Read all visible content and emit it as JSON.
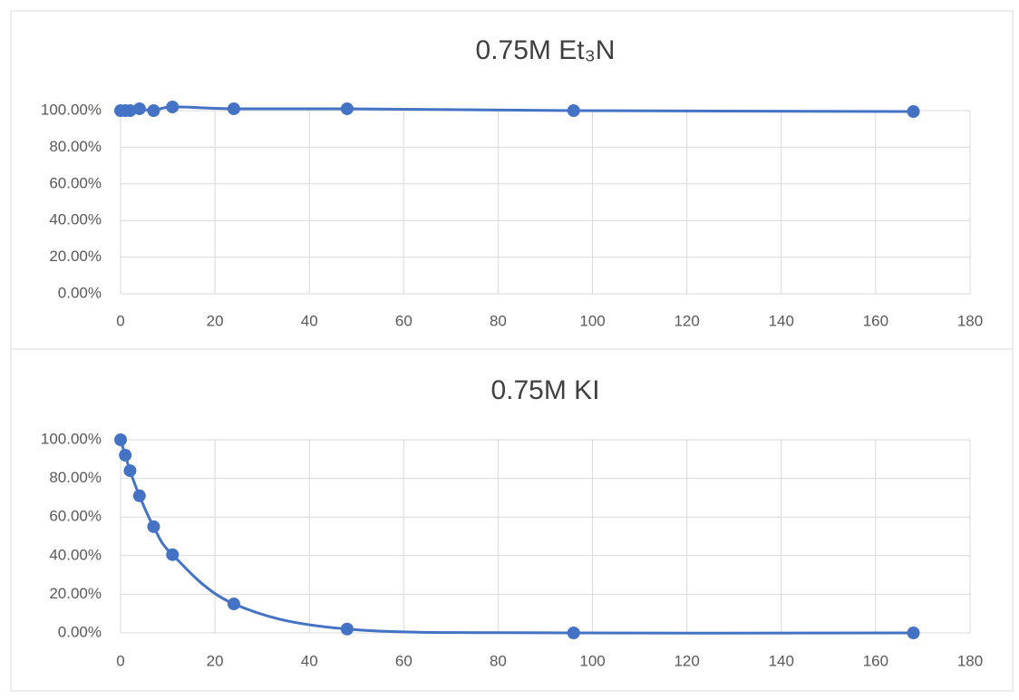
{
  "chart_data": [
    {
      "type": "scatter",
      "title": "0.75M Et₃N",
      "color": "#4472c4",
      "grid": true,
      "smooth": true,
      "x": [
        0,
        1,
        2,
        4,
        7,
        11,
        24,
        48,
        96,
        168
      ],
      "values": [
        100,
        100,
        100,
        101,
        100,
        102,
        101,
        101,
        100,
        99.5
      ],
      "xlim": [
        0,
        180
      ],
      "xticks": [
        0,
        20,
        40,
        60,
        80,
        100,
        120,
        140,
        160,
        180
      ],
      "ylim": [
        0,
        100
      ],
      "yticks": [
        {
          "value": 0,
          "label": "0.00%"
        },
        {
          "value": 20,
          "label": "20.00%"
        },
        {
          "value": 40,
          "label": "40.00%"
        },
        {
          "value": 60,
          "label": "60.00%"
        },
        {
          "value": 80,
          "label": "80.00%"
        },
        {
          "value": 100,
          "label": "100.00%"
        }
      ]
    },
    {
      "type": "scatter",
      "title": "0.75M KI",
      "color": "#4472c4",
      "grid": true,
      "smooth": true,
      "x": [
        0,
        1,
        2,
        4,
        7,
        11,
        24,
        48,
        96,
        168
      ],
      "values": [
        100,
        92,
        84,
        71,
        55,
        40.5,
        15,
        2,
        0,
        0
      ],
      "xlim": [
        0,
        180
      ],
      "xticks": [
        0,
        20,
        40,
        60,
        80,
        100,
        120,
        140,
        160,
        180
      ],
      "ylim": [
        0,
        100
      ],
      "yticks": [
        {
          "value": 0,
          "label": "0.00%"
        },
        {
          "value": 20,
          "label": "20.00%"
        },
        {
          "value": 40,
          "label": "40.00%"
        },
        {
          "value": 60,
          "label": "60.00%"
        },
        {
          "value": 80,
          "label": "80.00%"
        },
        {
          "value": 100,
          "label": "100.00%"
        }
      ]
    }
  ]
}
